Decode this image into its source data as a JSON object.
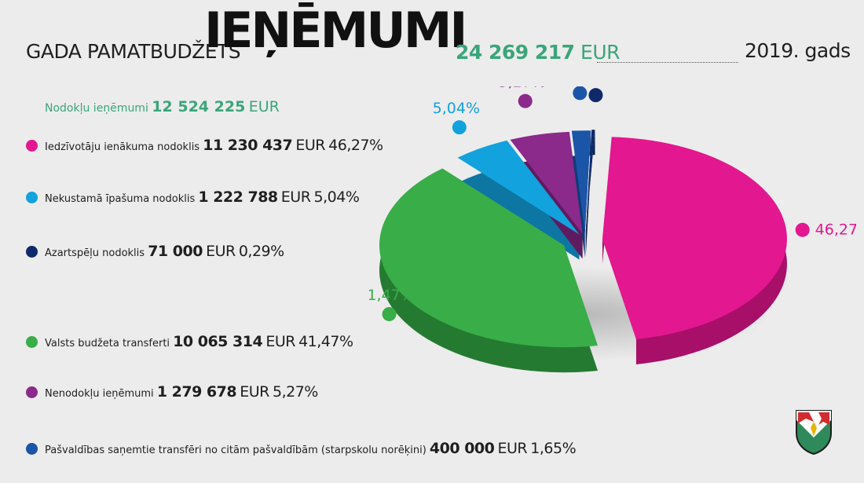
{
  "header": {
    "subtitle": "GADA PAMATBUDŽETS",
    "title": "IEŅĒMUMI",
    "total_amount": "24 269 217",
    "total_currency": "EUR",
    "year": "2019. gads"
  },
  "tax_revenue": {
    "label": "Nodokļu ieņēmumi",
    "amount": "12 524 225",
    "currency": "EUR"
  },
  "items": [
    {
      "label": "Iedzīvotāju ienākuma nodoklis",
      "amount": "11 230 437",
      "currency": "EUR",
      "percent": "46,27%",
      "color": "#e3178f"
    },
    {
      "label": "Nekustamā īpašuma nodoklis",
      "amount": "1 222 788",
      "currency": "EUR",
      "percent": "5,04%",
      "color": "#12a2dd"
    },
    {
      "label": "Azartspēļu nodoklis",
      "amount": "71 000",
      "currency": "EUR",
      "percent": "0,29%",
      "color": "#0f2a6a"
    },
    {
      "label": "Valsts budžeta transferti",
      "amount": "10 065 314",
      "currency": "EUR",
      "percent": "41,47%",
      "color": "#38ad48"
    },
    {
      "label": "Nenodokļu ieņēmumi",
      "amount": "1 279 678",
      "currency": "EUR",
      "percent": "5,27%",
      "color": "#8b2a8b"
    },
    {
      "label": "Pašvaldības saņemtie transfēri no citām pašvaldībām (starpskolu norēķini)",
      "amount": "400 000",
      "currency": "EUR",
      "percent": "1,65%",
      "color": "#1a55a8"
    }
  ],
  "chart_data": {
    "type": "pie",
    "categories": [
      "Iedzīvotāju ienākuma nodoklis",
      "Valsts budžeta transferti",
      "Nekustamā īpašuma nodoklis",
      "Nenodokļu ieņēmumi",
      "Pašvaldības saņemtie transfēri no citām pašvaldībām (starpskolu norēķini)",
      "Azartspēļu nodoklis"
    ],
    "values": [
      46.27,
      41.47,
      5.04,
      5.27,
      1.65,
      0.29
    ],
    "labels": [
      "46,27%",
      "41,47%",
      "5,04%",
      "5,27%",
      "1,65%",
      "0,29%"
    ],
    "colors": [
      "#e3178f",
      "#38ad48",
      "#12a2dd",
      "#8b2a8b",
      "#1a55a8",
      "#0f2a6a"
    ],
    "dark_colors": [
      "#a80f68",
      "#257a31",
      "#0d76a3",
      "#5f1b5f",
      "#113a78",
      "#091b46"
    ],
    "legend": "left"
  }
}
